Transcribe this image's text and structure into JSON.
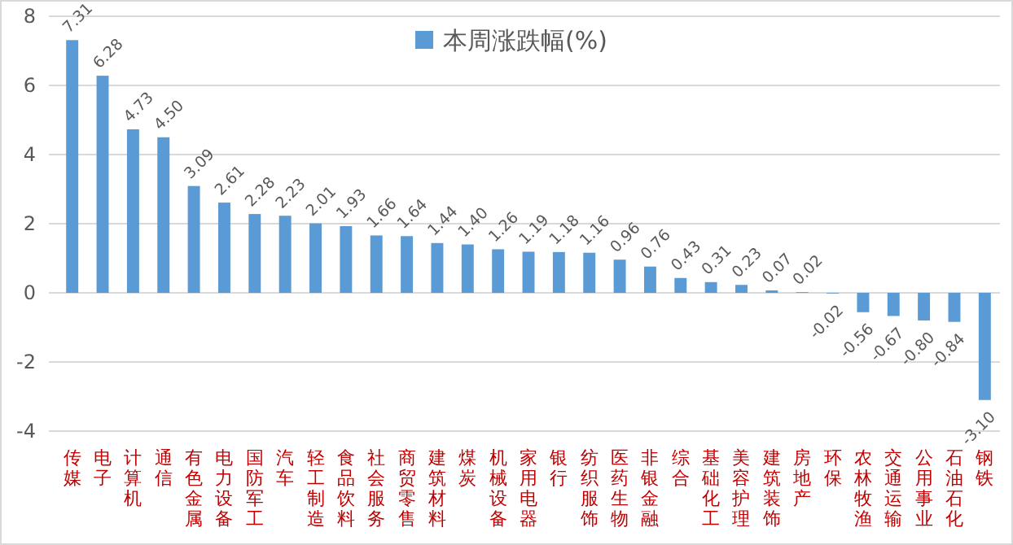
{
  "chart_data": {
    "type": "bar",
    "categories": [
      "传媒",
      "电子",
      "计算机",
      "通信",
      "有色金属",
      "电力设备",
      "国防军工",
      "汽车",
      "轻工制造",
      "食品饮料",
      "社会服务",
      "商贸零售",
      "建筑材料",
      "煤炭",
      "机械设备",
      "家用电器",
      "银行",
      "纺织服饰",
      "医药生物",
      "非银金融",
      "综合",
      "基础化工",
      "美容护理",
      "建筑装饰",
      "房地产",
      "环保",
      "农林牧渔",
      "交通运输",
      "公用事业",
      "石油石化",
      "钢铁"
    ],
    "series": [
      {
        "name": "本周涨跌幅(%)",
        "color": "#5b9bd5",
        "values": [
          7.31,
          6.28,
          4.73,
          4.5,
          3.09,
          2.61,
          2.28,
          2.23,
          2.01,
          1.93,
          1.66,
          1.64,
          1.44,
          1.4,
          1.26,
          1.19,
          1.18,
          1.16,
          0.96,
          0.76,
          0.43,
          0.31,
          0.23,
          0.07,
          0.02,
          -0.02,
          -0.56,
          -0.67,
          -0.8,
          -0.84,
          -3.1
        ],
        "value_labels": [
          "7.31",
          "6.28",
          "4.73",
          "4.50",
          "3.09",
          "2.61",
          "2.28",
          "2.23",
          "2.01",
          "1.93",
          "1.66",
          "1.64",
          "1.44",
          "1.40",
          "1.26",
          "1.19",
          "1.18",
          "1.16",
          "0.96",
          "0.76",
          "0.43",
          "0.31",
          "0.23",
          "0.07",
          "0.02",
          "-0.02",
          "-0.56",
          "-0.67",
          "-0.80",
          "-0.84",
          "-3.10"
        ]
      }
    ],
    "ylim": [
      -4,
      8
    ],
    "yticks": [
      -4,
      -2,
      0,
      2,
      4,
      6,
      8
    ],
    "grid": "y",
    "legend": "top"
  }
}
